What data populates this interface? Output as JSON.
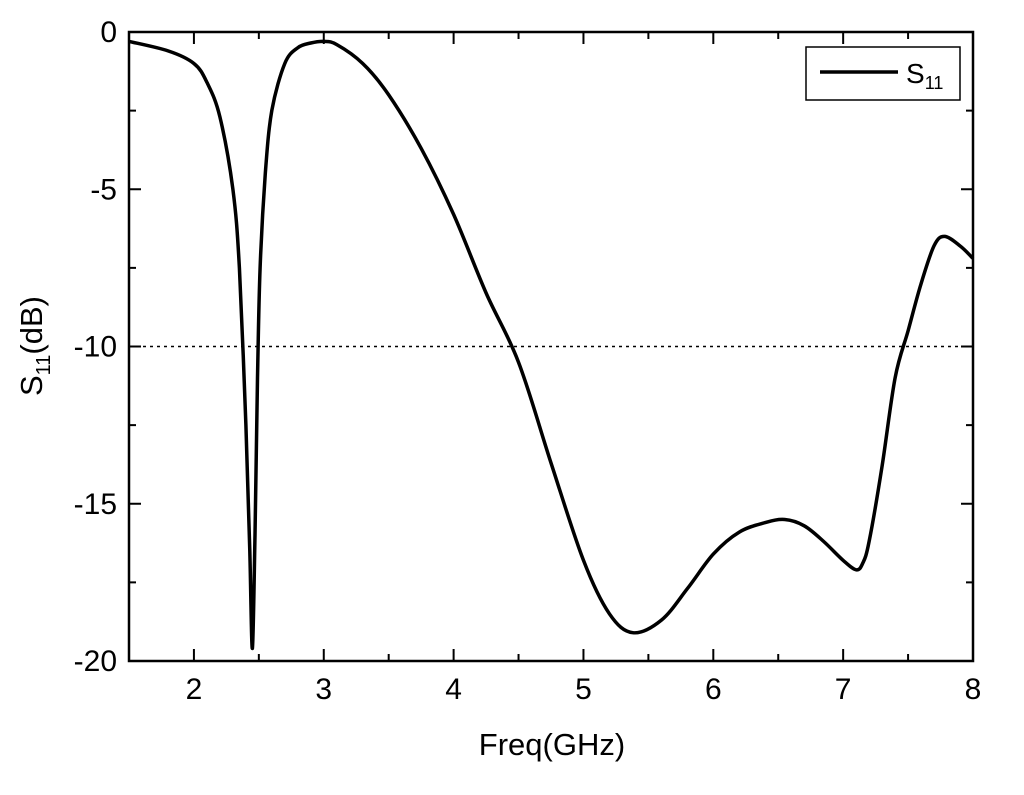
{
  "chart_data": {
    "type": "line",
    "title": "",
    "xlabel": "Freq(GHz)",
    "ylabel": {
      "main": "S",
      "sub": "11",
      "suffix": "(dB)"
    },
    "xlim": [
      1.5,
      8
    ],
    "ylim": [
      -20,
      0
    ],
    "xticks": [
      2,
      3,
      4,
      5,
      6,
      7,
      8
    ],
    "yticks": [
      0,
      -5,
      -10,
      -15,
      -20
    ],
    "grid": false,
    "legend": {
      "position": "top-right",
      "entry_main": "S",
      "entry_sub": "11"
    },
    "reference_line": {
      "y": -10,
      "style": "dotted"
    },
    "series": [
      {
        "name": "S11",
        "x": [
          1.5,
          1.8,
          2.0,
          2.1,
          2.2,
          2.3,
          2.35,
          2.4,
          2.43,
          2.45,
          2.47,
          2.49,
          2.51,
          2.55,
          2.6,
          2.7,
          2.8,
          2.9,
          3.0,
          3.1,
          3.3,
          3.5,
          3.75,
          4.0,
          4.25,
          4.5,
          4.75,
          5.0,
          5.2,
          5.38,
          5.6,
          5.8,
          6.0,
          6.2,
          6.4,
          6.55,
          6.7,
          6.85,
          7.0,
          7.1,
          7.15,
          7.2,
          7.3,
          7.4,
          7.5,
          7.6,
          7.7,
          7.78,
          7.9,
          8.0
        ],
        "y": [
          -0.3,
          -0.6,
          -1.0,
          -1.6,
          -2.7,
          -5.0,
          -7.5,
          -12.5,
          -16.5,
          -19.6,
          -16.0,
          -11.0,
          -7.5,
          -4.5,
          -2.5,
          -1.0,
          -0.5,
          -0.35,
          -0.3,
          -0.4,
          -1.0,
          -2.0,
          -3.7,
          -5.8,
          -8.3,
          -10.5,
          -13.7,
          -16.8,
          -18.5,
          -19.1,
          -18.7,
          -17.7,
          -16.6,
          -15.9,
          -15.6,
          -15.5,
          -15.7,
          -16.2,
          -16.8,
          -17.1,
          -16.9,
          -16.2,
          -13.8,
          -11.0,
          -9.5,
          -8.0,
          -6.8,
          -6.5,
          -6.8,
          -7.2
        ]
      }
    ]
  }
}
